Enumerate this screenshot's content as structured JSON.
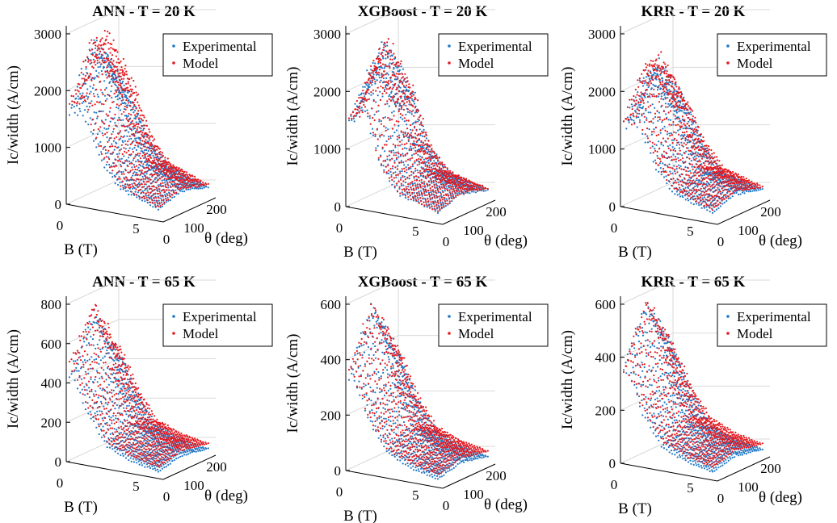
{
  "colors": {
    "experimental": "#1f77c4",
    "model": "#e6191f",
    "axis": "#000000",
    "grid": "#d9d9d9"
  },
  "chart_data": [
    {
      "type": "scatter",
      "title": "ANN - T = 20 K",
      "xlabel": "B (T)",
      "ylabel": "Ic/width (A/cm)",
      "zlabel": "θ (deg)",
      "yticks": [
        "0",
        "1000",
        "2000",
        "3000"
      ],
      "xticks": [
        "0",
        "5"
      ],
      "zticks": [
        "0",
        "100",
        "200"
      ],
      "ylim": [
        0,
        3200
      ],
      "xlim": [
        0,
        7
      ],
      "zlim": [
        0,
        250
      ],
      "legend": [
        "Experimental",
        "Model"
      ],
      "legend_position": "top-right",
      "series": [
        {
          "role": "experimental",
          "ridge": [
            [
              0.5,
              2850
            ],
            [
              1.2,
              2700
            ],
            [
              2.5,
              1500
            ],
            [
              4.0,
              800
            ],
            [
              7.0,
              420
            ]
          ]
        },
        {
          "role": "model",
          "ridge": [
            [
              0.5,
              2900
            ],
            [
              1.2,
              3200
            ],
            [
              2.5,
              1700
            ],
            [
              4.0,
              900
            ],
            [
              7.0,
              450
            ]
          ]
        }
      ]
    },
    {
      "type": "scatter",
      "title": "XGBoost - T = 20 K",
      "xlabel": "B (T)",
      "ylabel": "Ic/width (A/cm)",
      "zlabel": "θ (deg)",
      "yticks": [
        "0",
        "1000",
        "2000",
        "3000"
      ],
      "xticks": [
        "0",
        "5"
      ],
      "zticks": [
        "0",
        "100",
        "200"
      ],
      "ylim": [
        0,
        3200
      ],
      "xlim": [
        0,
        7
      ],
      "zlim": [
        0,
        250
      ],
      "legend": [
        "Experimental",
        "Model"
      ],
      "legend_position": "top-right",
      "series": [
        {
          "role": "experimental",
          "ridge": [
            [
              0.3,
              2500
            ],
            [
              1.2,
              3050
            ],
            [
              2.5,
              1400
            ],
            [
              4.0,
              700
            ],
            [
              7.0,
              400
            ]
          ]
        },
        {
          "role": "model",
          "ridge": [
            [
              0.3,
              2450
            ],
            [
              1.2,
              3100
            ],
            [
              2.5,
              1400
            ],
            [
              4.0,
              700
            ],
            [
              7.0,
              400
            ]
          ]
        }
      ]
    },
    {
      "type": "scatter",
      "title": "KRR - T = 20 K",
      "xlabel": "B (T)",
      "ylabel": "Ic/width (A/cm)",
      "zlabel": "θ (deg)",
      "yticks": [
        "0",
        "1000",
        "2000",
        "3000"
      ],
      "xticks": [
        "0",
        "5"
      ],
      "zticks": [
        "0",
        "100",
        "200"
      ],
      "ylim": [
        0,
        3200
      ],
      "xlim": [
        0,
        7
      ],
      "zlim": [
        0,
        250
      ],
      "legend": [
        "Experimental",
        "Model"
      ],
      "legend_position": "top-right",
      "series": [
        {
          "role": "experimental",
          "ridge": [
            [
              0.3,
              2400
            ],
            [
              1.2,
              2600
            ],
            [
              2.5,
              1400
            ],
            [
              4.0,
              700
            ],
            [
              7.0,
              400
            ]
          ]
        },
        {
          "role": "model",
          "ridge": [
            [
              0.3,
              2500
            ],
            [
              1.2,
              2700
            ],
            [
              2.5,
              1500
            ],
            [
              4.0,
              800
            ],
            [
              7.0,
              450
            ]
          ]
        }
      ]
    },
    {
      "type": "scatter",
      "title": "ANN - T = 65 K",
      "xlabel": "B (T)",
      "ylabel": "Ic/width (A/cm)",
      "zlabel": "θ (deg)",
      "yticks": [
        "0",
        "200",
        "400",
        "600",
        "800"
      ],
      "xticks": [
        "0",
        "5"
      ],
      "zticks": [
        "0",
        "100",
        "200"
      ],
      "ylim": [
        0,
        850
      ],
      "xlim": [
        0,
        7
      ],
      "zlim": [
        0,
        250
      ],
      "legend": [
        "Experimental",
        "Model"
      ],
      "legend_position": "top-right",
      "series": [
        {
          "role": "experimental",
          "ridge": [
            [
              0.3,
              750
            ],
            [
              1.5,
              450
            ],
            [
              3.0,
              200
            ],
            [
              5.0,
              120
            ],
            [
              7.0,
              80
            ]
          ]
        },
        {
          "role": "model",
          "ridge": [
            [
              0.3,
              780
            ],
            [
              1.5,
              470
            ],
            [
              3.0,
              210
            ],
            [
              5.0,
              125
            ],
            [
              7.0,
              85
            ]
          ]
        }
      ]
    },
    {
      "type": "scatter",
      "title": "XGBoost - T = 65 K",
      "xlabel": "B (T)",
      "ylabel": "Ic/width (A/cm)",
      "zlabel": "θ (deg)",
      "yticks": [
        "0",
        "200",
        "400",
        "600"
      ],
      "xticks": [
        "0",
        "5"
      ],
      "zticks": [
        "0",
        "100",
        "200"
      ],
      "ylim": [
        0,
        780
      ],
      "xlim": [
        0,
        7
      ],
      "zlim": [
        0,
        250
      ],
      "legend": [
        "Experimental",
        "Model"
      ],
      "legend_position": "top-right",
      "series": [
        {
          "role": "experimental",
          "ridge": [
            [
              0.3,
              720
            ],
            [
              1.5,
              430
            ],
            [
              3.0,
              200
            ],
            [
              5.0,
              120
            ],
            [
              7.0,
              80
            ]
          ]
        },
        {
          "role": "model",
          "ridge": [
            [
              0.3,
              710
            ],
            [
              1.5,
              420
            ],
            [
              3.0,
              195
            ],
            [
              5.0,
              118
            ],
            [
              7.0,
              78
            ]
          ]
        }
      ]
    },
    {
      "type": "scatter",
      "title": "KRR - T = 65 K",
      "xlabel": "B (T)",
      "ylabel": "Ic/width (A/cm)",
      "zlabel": "θ (deg)",
      "yticks": [
        "0",
        "200",
        "400",
        "600"
      ],
      "xticks": [
        "0",
        "5"
      ],
      "zticks": [
        "0",
        "100",
        "200"
      ],
      "ylim": [
        0,
        780
      ],
      "xlim": [
        0,
        7
      ],
      "zlim": [
        0,
        250
      ],
      "legend": [
        "Experimental",
        "Model"
      ],
      "legend_position": "top-right",
      "series": [
        {
          "role": "experimental",
          "ridge": [
            [
              0.3,
              740
            ],
            [
              1.5,
              430
            ],
            [
              3.0,
              200
            ],
            [
              5.0,
              120
            ],
            [
              7.0,
              80
            ]
          ]
        },
        {
          "role": "model",
          "ridge": [
            [
              0.3,
              720
            ],
            [
              1.5,
              440
            ],
            [
              3.0,
              210
            ],
            [
              5.0,
              125
            ],
            [
              7.0,
              85
            ]
          ]
        }
      ]
    }
  ]
}
